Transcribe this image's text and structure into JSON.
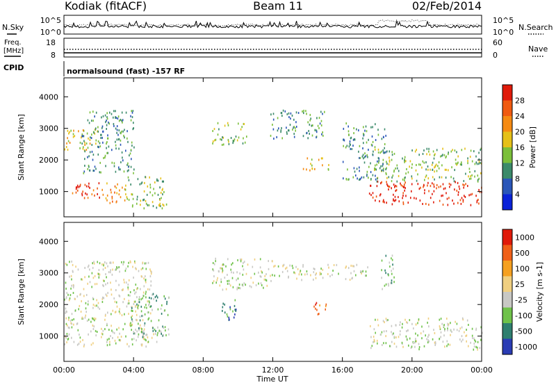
{
  "header": {
    "station": "Kodiak (fitACF)",
    "beam": "Beam 11",
    "date": "02/Feb/2014"
  },
  "chart_data": [
    {
      "type": "line",
      "panel": "noise",
      "left_label": "N.Sky",
      "right_label": "N.Search",
      "left_ticks": [
        "10^5",
        "10^0"
      ],
      "right_ticks": [
        "10^5",
        "10^0"
      ],
      "series": [
        {
          "name": "N.Sky",
          "style": "solid"
        },
        {
          "name": "N.Search",
          "style": "dotted"
        }
      ]
    },
    {
      "type": "line",
      "panel": "frequency",
      "left_label_line1": "Freq.",
      "left_label_line2": "[MHz]",
      "right_label": "Nave",
      "left_ticks": [
        "18",
        "8"
      ],
      "right_ticks": [
        "60",
        "0"
      ],
      "series": [
        {
          "name": "Freq.",
          "style": "solid",
          "value": 10.2
        },
        {
          "name": "Nave",
          "style": "dotted",
          "value": 22
        }
      ]
    },
    {
      "type": "table",
      "panel": "cpid",
      "label": "CPID",
      "text": "normalsound (fast) -157 RF"
    },
    {
      "type": "heatmap",
      "panel": "power",
      "ylabel": "Slant Range [km]",
      "yticks": [
        "1000",
        "2000",
        "3000",
        "4000"
      ],
      "ylim": [
        200,
        4600
      ],
      "colorbar_label": "Power [dB]",
      "colorbar_ticks": [
        "4",
        "8",
        "12",
        "16",
        "20",
        "24",
        "28"
      ],
      "colors": [
        "#0a22d8",
        "#2a56b8",
        "#3b8a6a",
        "#7bbf3a",
        "#e5c018",
        "#f58a12",
        "#f05a10",
        "#e01a0a"
      ],
      "regions": [
        {
          "t": [
            0.3,
            2.2
          ],
          "r": [
            800,
            1350
          ],
          "level": 6
        },
        {
          "t": [
            2.2,
            3.5
          ],
          "r": [
            650,
            1300
          ],
          "level": 5
        },
        {
          "t": [
            3.5,
            6.0
          ],
          "r": [
            500,
            1500
          ],
          "level": 3
        },
        {
          "t": [
            0.0,
            2.0
          ],
          "r": [
            2300,
            3000
          ],
          "level": 4
        },
        {
          "t": [
            1.0,
            4.0
          ],
          "r": [
            1600,
            3600
          ],
          "level": 2
        },
        {
          "t": [
            8.5,
            10.5
          ],
          "r": [
            2500,
            3200
          ],
          "level": 3
        },
        {
          "t": [
            11.8,
            15.0
          ],
          "r": [
            2700,
            3600
          ],
          "level": 2
        },
        {
          "t": [
            13.7,
            15.2
          ],
          "r": [
            1700,
            2100
          ],
          "level": 4
        },
        {
          "t": [
            17.5,
            24.0
          ],
          "r": [
            600,
            1350
          ],
          "level": 7
        },
        {
          "t": [
            17.8,
            24.0
          ],
          "r": [
            1350,
            2400
          ],
          "level": 3
        },
        {
          "t": [
            16.0,
            18.5
          ],
          "r": [
            1400,
            3200
          ],
          "level": 2
        }
      ]
    },
    {
      "type": "heatmap",
      "panel": "velocity",
      "ylabel": "Slant Range [km]",
      "yticks": [
        "1000",
        "2000",
        "3000",
        "4000"
      ],
      "ylim": [
        200,
        4600
      ],
      "colorbar_label": "Velocity [m s-1]",
      "colorbar_ticks": [
        "1000",
        "500",
        "100",
        "25",
        "-25",
        "-100",
        "-500",
        "-1000"
      ],
      "colors": [
        "#2a3cb4",
        "#2f7f6f",
        "#6fc24a",
        "#c8c8c4",
        "#f0cf80",
        "#f5a020",
        "#f06018",
        "#e01a0a"
      ],
      "regions": [
        {
          "t": [
            0.0,
            5.5
          ],
          "r": [
            700,
            1400
          ],
          "level": 3
        },
        {
          "t": [
            0.0,
            5.0
          ],
          "r": [
            1400,
            3400
          ],
          "level": 3
        },
        {
          "t": [
            3.8,
            6.0
          ],
          "r": [
            1000,
            2400
          ],
          "level": 2
        },
        {
          "t": [
            8.5,
            12.0
          ],
          "r": [
            2500,
            3500
          ],
          "level": 3
        },
        {
          "t": [
            12.0,
            17.5
          ],
          "r": [
            2800,
            3300
          ],
          "level": 3
        },
        {
          "t": [
            14.2,
            15.2
          ],
          "r": [
            1700,
            2100
          ],
          "level": 6
        },
        {
          "t": [
            9.0,
            10.0
          ],
          "r": [
            1500,
            2200
          ],
          "level": 1
        },
        {
          "t": [
            17.5,
            24.0
          ],
          "r": [
            600,
            1600
          ],
          "level": 3
        },
        {
          "t": [
            18.2,
            19.0
          ],
          "r": [
            2400,
            3600
          ],
          "level": 2
        }
      ]
    }
  ],
  "xaxis": {
    "ticks": [
      "00:00",
      "04:00",
      "08:00",
      "12:00",
      "16:00",
      "20:00",
      "00:00"
    ],
    "label": "Time UT",
    "range_hours": [
      0,
      24
    ]
  }
}
